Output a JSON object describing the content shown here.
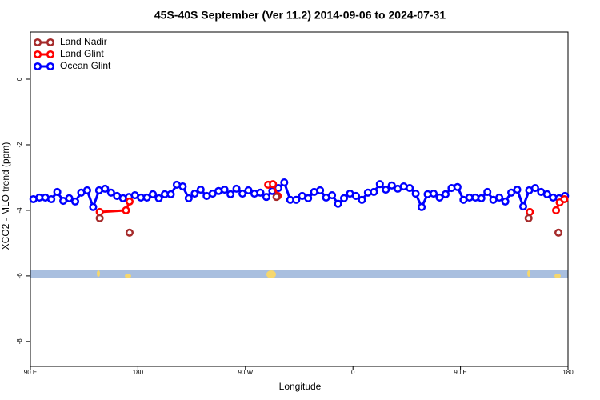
{
  "chart_data": {
    "type": "line",
    "title": "45S-40S September (Ver 11.2)   2014-09-06 to 2024-07-31",
    "xlabel": "Longitude",
    "ylabel": "XCO2 - MLO trend (ppm)",
    "xlim": [
      90,
      540
    ],
    "ylim": [
      -8.76,
      1.44
    ],
    "xticks": [
      {
        "value": 90,
        "label": "90 E"
      },
      180,
      {
        "value": 270,
        "label": "90 W"
      },
      {
        "value": 360,
        "label": "0"
      },
      {
        "value": 450,
        "label": "90 E"
      },
      {
        "value": 540,
        "label": "180"
      }
    ],
    "yticks": [
      0,
      -2,
      -4,
      -6,
      -8
    ],
    "legend": "top-left",
    "series": [
      {
        "name": "Land Nadir",
        "color": "#a52a2a",
        "x": [
          148,
          160,
          173,
          250,
          296,
          400,
          507,
          520,
          532
        ],
        "values": [
          -4.24,
          null,
          -4.68,
          null,
          -3.59,
          null,
          -4.24,
          null,
          -4.68
        ]
      },
      {
        "name": "Land Glint",
        "color": "#ff0000",
        "x": [
          148,
          170,
          173,
          230,
          289,
          293,
          297,
          400,
          508,
          520,
          530,
          533,
          537
        ],
        "values": [
          -4.05,
          -4.0,
          -3.73,
          null,
          -3.22,
          -3.2,
          -3.56,
          null,
          -4.05,
          null,
          -4.0,
          -3.76,
          -3.66
        ]
      },
      {
        "name": "Ocean Glint",
        "color": "#0000ff",
        "x": [
          92.5,
          97.5,
          102.5,
          107.5,
          112.5,
          117.5,
          122.5,
          127.5,
          132.5,
          137.5,
          142.5,
          147.5,
          152.5,
          157.5,
          162.5,
          167.5,
          172.5,
          177.5,
          182.5,
          187.5,
          192.5,
          197.5,
          202.5,
          207.5,
          212.5,
          217.5,
          222.5,
          227.5,
          232.5,
          237.5,
          242.5,
          247.5,
          252.5,
          257.5,
          262.5,
          267.5,
          272.5,
          277.5,
          282.5,
          287.5,
          292.5,
          297.5,
          302.5,
          307.5,
          312.5,
          317.5,
          322.5,
          327.5,
          332.5,
          337.5,
          342.5,
          347.5,
          352.5,
          357.5,
          362.5,
          367.5,
          372.5,
          377.5,
          382.5,
          387.5,
          392.5,
          397.5,
          402.5,
          407.5,
          412.5,
          417.5,
          422.5,
          427.5,
          432.5,
          437.5,
          442.5,
          447.5,
          452.5,
          457.5,
          462.5,
          467.5,
          472.5,
          477.5,
          482.5,
          487.5,
          492.5,
          497.5,
          502.5,
          507.5,
          512.5,
          517.5,
          522.5,
          527.5,
          532.5,
          537.5
        ],
        "values": [
          -3.66,
          -3.61,
          -3.61,
          -3.66,
          -3.44,
          -3.71,
          -3.63,
          -3.73,
          -3.46,
          -3.39,
          -3.9,
          -3.39,
          -3.34,
          -3.46,
          -3.56,
          -3.63,
          -3.59,
          -3.54,
          -3.61,
          -3.61,
          -3.51,
          -3.63,
          -3.51,
          -3.51,
          -3.22,
          -3.27,
          -3.63,
          -3.49,
          -3.37,
          -3.56,
          -3.49,
          -3.41,
          -3.37,
          -3.51,
          -3.34,
          -3.49,
          -3.39,
          -3.49,
          -3.46,
          -3.59,
          -3.41,
          -3.32,
          -3.15,
          -3.68,
          -3.68,
          -3.56,
          -3.63,
          -3.44,
          -3.39,
          -3.61,
          -3.54,
          -3.8,
          -3.63,
          -3.49,
          -3.56,
          -3.68,
          -3.46,
          -3.44,
          -3.2,
          -3.37,
          -3.24,
          -3.34,
          -3.27,
          -3.32,
          -3.49,
          -3.9,
          -3.51,
          -3.49,
          -3.61,
          -3.51,
          -3.32,
          -3.29,
          -3.68,
          -3.61,
          -3.61,
          -3.63,
          -3.44,
          -3.68,
          -3.61,
          -3.73,
          -3.46,
          -3.37,
          -3.88,
          -3.39,
          -3.32,
          -3.44,
          -3.51,
          -3.61,
          -3.63,
          -3.56
        ]
      }
    ]
  }
}
